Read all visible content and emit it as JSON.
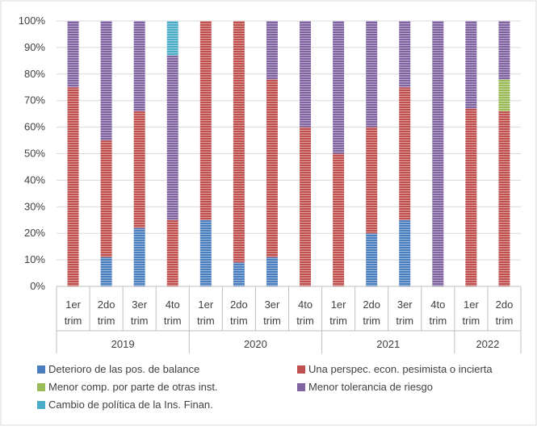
{
  "colors": {
    "deterioro": "#4a7ebf",
    "perspec": "#c0504d",
    "menor_comp": "#9bbb59",
    "tolerancia": "#8064a2",
    "cambio": "#4bacc6",
    "grid": "#d9d9d9",
    "axis": "#bfbfbf",
    "text": "#404040"
  },
  "chart_data": {
    "type": "bar",
    "stacked": true,
    "percent": true,
    "ylim": [
      0,
      100
    ],
    "yticks": [
      "0%",
      "10%",
      "20%",
      "30%",
      "40%",
      "50%",
      "60%",
      "70%",
      "80%",
      "90%",
      "100%"
    ],
    "grid": true,
    "legend_position": "bottom",
    "categories": [
      {
        "line1": "1er",
        "line2": "trim",
        "year": "2019"
      },
      {
        "line1": "2do",
        "line2": "trim",
        "year": "2019"
      },
      {
        "line1": "3er",
        "line2": "trim",
        "year": "2019"
      },
      {
        "line1": "4to",
        "line2": "trim",
        "year": "2019"
      },
      {
        "line1": "1er",
        "line2": "trim",
        "year": "2020"
      },
      {
        "line1": "2do",
        "line2": "trim",
        "year": "2020"
      },
      {
        "line1": "3er",
        "line2": "trim",
        "year": "2020"
      },
      {
        "line1": "4to",
        "line2": "trim",
        "year": "2020"
      },
      {
        "line1": "1er",
        "line2": "trim",
        "year": "2021"
      },
      {
        "line1": "2do",
        "line2": "trim",
        "year": "2021"
      },
      {
        "line1": "3er",
        "line2": "trim",
        "year": "2021"
      },
      {
        "line1": "4to",
        "line2": "trim",
        "year": "2021"
      },
      {
        "line1": "1er",
        "line2": "trim",
        "year": "2022"
      },
      {
        "line1": "2do",
        "line2": "trim",
        "year": "2022"
      }
    ],
    "years": [
      {
        "label": "2019",
        "count": 4
      },
      {
        "label": "2020",
        "count": 4
      },
      {
        "label": "2021",
        "count": 4
      },
      {
        "label": "2022",
        "count": 2
      }
    ],
    "series": [
      {
        "name": "Deterioro de las pos. de balance",
        "color_key": "deterioro",
        "values": [
          0,
          11,
          22,
          0,
          25,
          9,
          11,
          0,
          0,
          20,
          25,
          0,
          0,
          0
        ]
      },
      {
        "name": "Una perspec. econ. pesimista o  incierta",
        "color_key": "perspec",
        "values": [
          75,
          44,
          44,
          25,
          75,
          91,
          67,
          60,
          50,
          40,
          50,
          0,
          67,
          66
        ]
      },
      {
        "name": "Menor comp. por parte de otras inst.",
        "color_key": "menor_comp",
        "values": [
          0,
          0,
          0,
          0,
          0,
          0,
          0,
          0,
          0,
          0,
          0,
          0,
          0,
          12
        ]
      },
      {
        "name": "Menor tolerancia de riesgo",
        "color_key": "tolerancia",
        "values": [
          25,
          45,
          34,
          62,
          0,
          0,
          22,
          40,
          50,
          40,
          25,
          100,
          33,
          22
        ]
      },
      {
        "name": "Cambio de política de la Ins. Finan.",
        "color_key": "cambio",
        "values": [
          0,
          0,
          0,
          13,
          0,
          0,
          0,
          0,
          0,
          0,
          0,
          0,
          0,
          0
        ]
      }
    ],
    "legend_order": [
      0,
      1,
      2,
      3,
      4
    ]
  }
}
